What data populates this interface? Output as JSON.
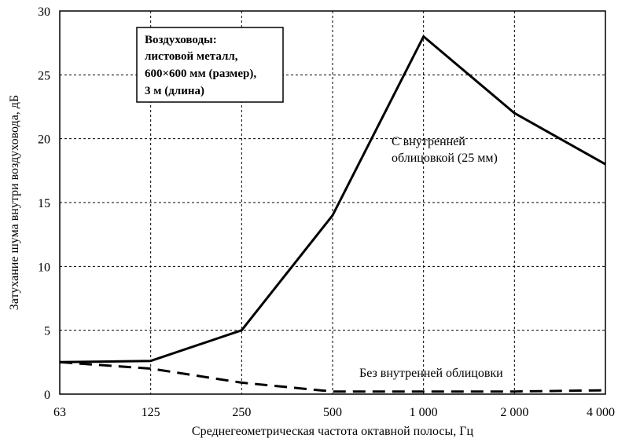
{
  "chart_data": {
    "type": "line",
    "xlabel": "Среднегеометрическая частота октавной полосы, Гц",
    "ylabel": "Затухание шума внутри воздуховода, дБ",
    "categories": [
      "63",
      "125",
      "250",
      "500",
      "1 000",
      "2 000",
      "4 000"
    ],
    "ylim": [
      0,
      30
    ],
    "yticks": [
      "0",
      "5",
      "10",
      "15",
      "20",
      "25",
      "30"
    ],
    "grid": true,
    "series": [
      {
        "name": "С внутренней облицовкой (25 мм)",
        "name_lines": [
          "С внутренней",
          "облицовкой (25 мм)"
        ],
        "style": "solid",
        "points": [
          [
            0,
            2.5
          ],
          [
            1,
            2.6
          ],
          [
            2,
            5
          ],
          [
            3,
            14
          ],
          [
            4,
            28
          ],
          [
            5,
            22
          ],
          [
            6,
            18
          ]
        ]
      },
      {
        "name": "Без внутренней облицовки",
        "name_lines": [
          "Без внутренней облицовки"
        ],
        "style": "dashed",
        "points": [
          [
            0,
            2.5
          ],
          [
            1,
            2.0
          ],
          [
            2,
            0.9
          ],
          [
            3,
            0.2
          ],
          [
            4,
            0.2
          ],
          [
            5,
            0.2
          ],
          [
            6,
            0.3
          ]
        ]
      }
    ],
    "annotation_box": [
      "Воздуховоды:",
      "листовой металл,",
      "600×600 мм (размер),",
      "3 м (длина)"
    ]
  }
}
